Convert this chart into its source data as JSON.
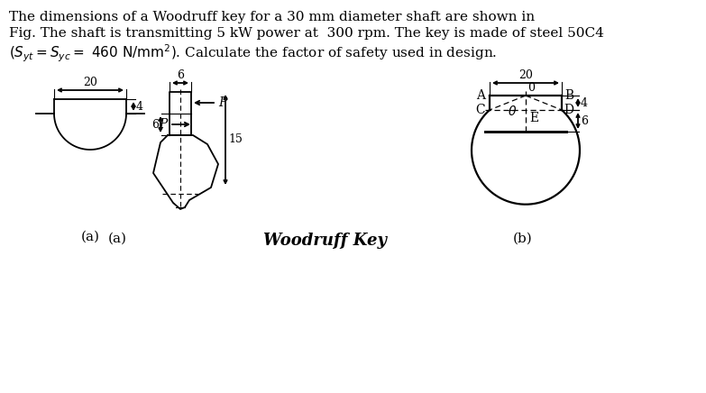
{
  "bg_color": "#ffffff",
  "text_color": "#000000",
  "line1": "The dimensions of a Woodruff key for a 30 mm diameter shaft are shown in",
  "line2": "Fig. The shaft is transmitting 5 kW power at  300 rpm. The key is made of steel 50C4",
  "line3_pre": "(",
  "line3_post": " 460 N/mm",
  "line3_end": "). Calculate the factor of safety used in design.",
  "caption": "Woodruff Key",
  "label_a": "(a)",
  "label_b": "(b)"
}
